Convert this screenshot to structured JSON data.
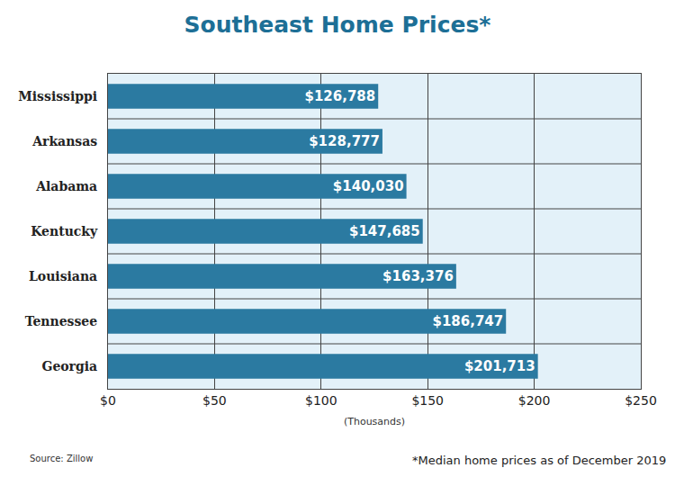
{
  "chart_data": {
    "type": "bar",
    "orientation": "horizontal",
    "title": "Southeast Home Prices*",
    "x_label": "(Thousands)",
    "source": "Source: Zillow",
    "note": "*Median home prices as of December 2019",
    "categories": [
      "Mississippi",
      "Arkansas",
      "Alabama",
      "Kentucky",
      "Louisiana",
      "Tennessee",
      "Georgia"
    ],
    "values": [
      126.788,
      128.777,
      140.03,
      147.685,
      163.376,
      186.747,
      201.713
    ],
    "value_labels": [
      "$126,788",
      "$128,777",
      "$140,030",
      "$147,685",
      "$163,376",
      "$186,747",
      "$201,713"
    ],
    "data_labels": true,
    "color": "#2b7aa1",
    "xlim": [
      0,
      250
    ],
    "xticks": [
      {
        "value": 0,
        "label": "$0"
      },
      {
        "value": 50,
        "label": "$50"
      },
      {
        "value": 100,
        "label": "$100"
      },
      {
        "value": 150,
        "label": "$150"
      },
      {
        "value": 200,
        "label": "$200"
      },
      {
        "value": 250,
        "label": "$250"
      }
    ],
    "grid": true
  }
}
